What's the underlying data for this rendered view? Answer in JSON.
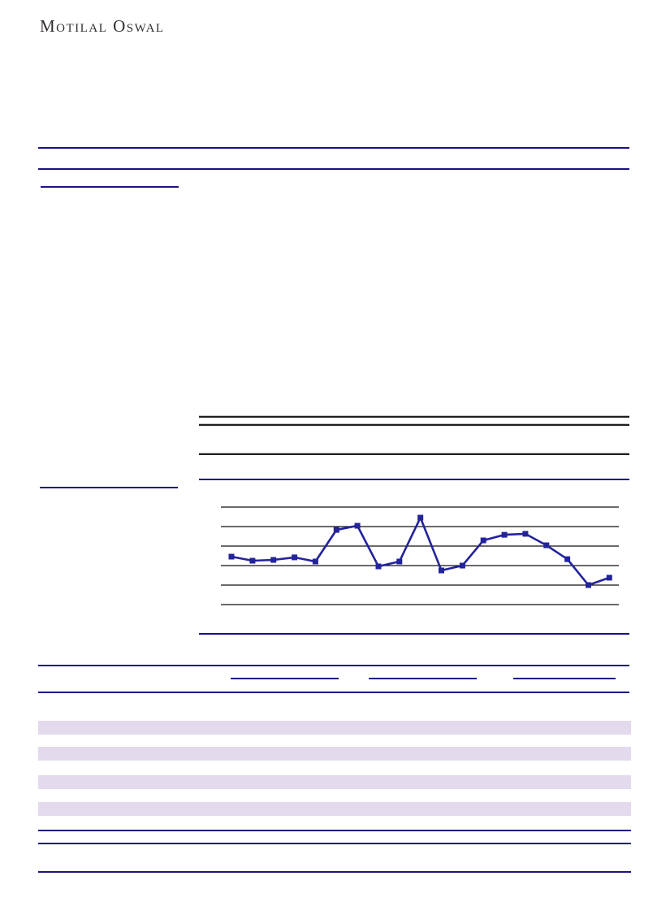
{
  "header": {
    "logo": "Motilal Oswal"
  },
  "colors": {
    "navy_rule": "#1c1282",
    "black_rule": "#1f1f1f",
    "stripe": "#e3daed",
    "chart_line": "#23239b",
    "logo_text": "#332e2e"
  },
  "chart_data": {
    "type": "line",
    "title": "",
    "xlabel": "",
    "ylabel": "",
    "x_count": 19,
    "values": [
      2.46,
      2.25,
      2.29,
      2.42,
      2.21,
      3.83,
      4.04,
      1.96,
      2.21,
      4.46,
      1.75,
      2.0,
      3.29,
      3.58,
      3.63,
      3.04,
      2.33,
      1.0,
      1.38
    ],
    "ylim": [
      0,
      5
    ],
    "gridline_values": [
      0,
      1,
      2,
      3,
      4,
      5
    ],
    "grid": true,
    "legend_position": "none",
    "marker": "square",
    "line_color": "#23239b"
  }
}
